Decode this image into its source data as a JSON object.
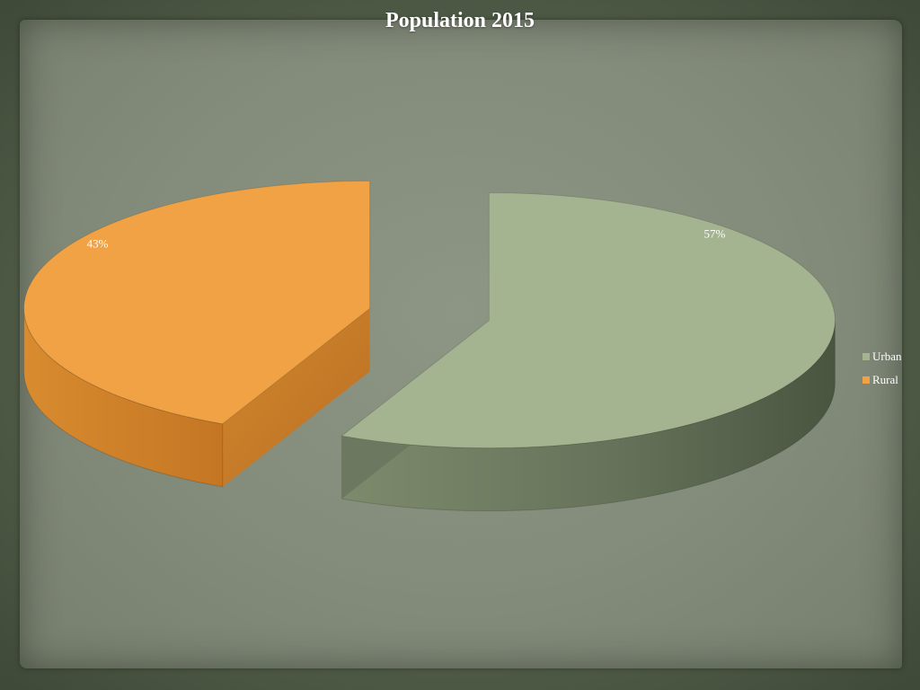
{
  "chart_data": {
    "type": "pie",
    "title": "Population 2015",
    "three_d": true,
    "exploded": true,
    "slices": [
      {
        "label": "Urban",
        "value": 57,
        "display": "57%",
        "color": "#a4b490",
        "side_color": "#5d6a50"
      },
      {
        "label": "Rural",
        "value": 43,
        "display": "43%",
        "color": "#f0a244",
        "side_color": "#c97f2a"
      }
    ],
    "legend_position": "right"
  }
}
